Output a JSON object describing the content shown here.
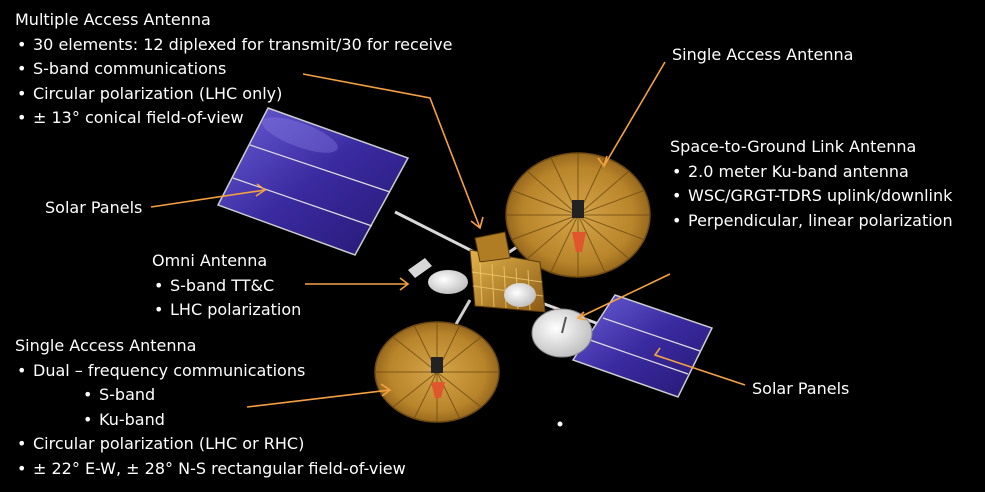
{
  "multiple_access_antenna": {
    "title": "Multiple Access Antenna",
    "items": [
      "30 elements: 12 diplexed for transmit/30 for receive",
      "S-band communications",
      "Circular polarization (LHC only)",
      "± 13° conical field-of-view"
    ]
  },
  "single_access_antenna_top": {
    "title": "Single Access Antenna"
  },
  "space_to_ground": {
    "title": "Space-to-Ground Link Antenna",
    "items": [
      "2.0 meter Ku-band antenna",
      "WSC/GRGT-TDRS uplink/downlink",
      "Perpendicular, linear polarization"
    ]
  },
  "solar_panels_left": {
    "title": "Solar Panels"
  },
  "solar_panels_right": {
    "title": "Solar Panels"
  },
  "omni_antenna": {
    "title": "Omni Antenna",
    "items": [
      "S-band TT&C",
      "LHC polarization"
    ]
  },
  "single_access_antenna_bottom": {
    "title": "Single Access Antenna",
    "items": [
      "Dual – frequency communications"
    ],
    "sub_items": [
      "S-band",
      "Ku-band"
    ],
    "items_after": [
      "Circular polarization (LHC or RHC)",
      "± 22° E-W, ± 28° N-S rectangular field-of-view"
    ]
  },
  "colors": {
    "background": "#000000",
    "arrow": "#f5a142",
    "panel": "#3d2fa8",
    "dish": "#c9962e",
    "text": "#ffffff"
  }
}
